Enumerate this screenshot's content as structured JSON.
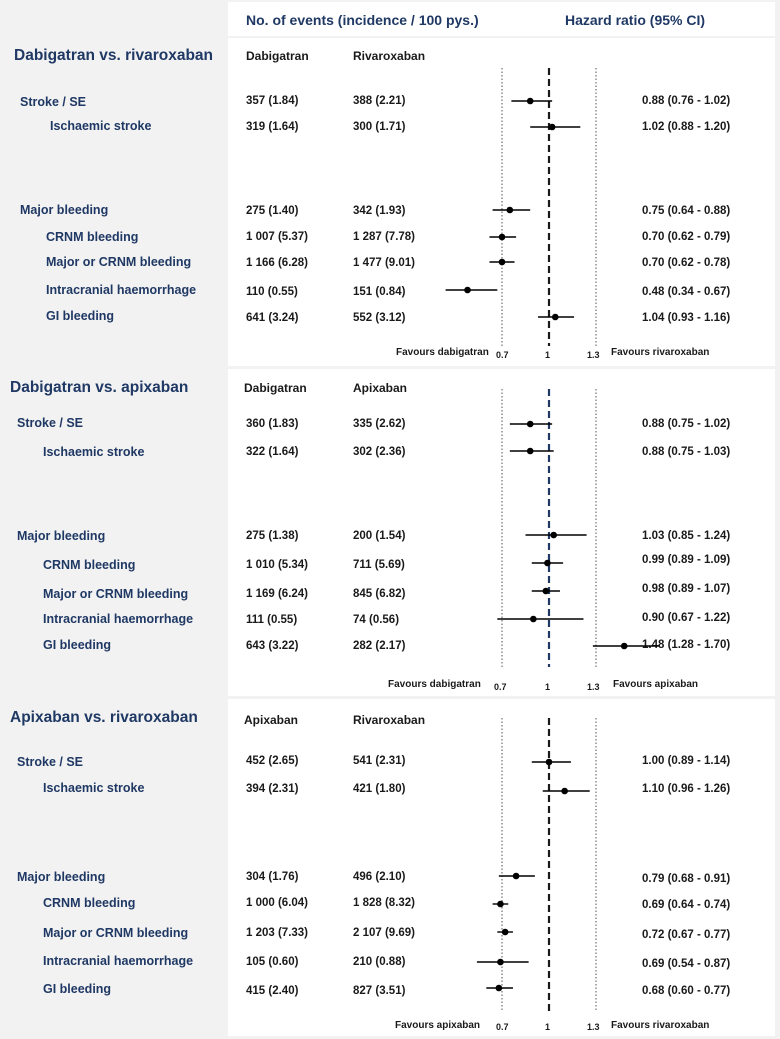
{
  "header": {
    "events_title": "No. of events (incidence / 100 pys.)",
    "hr_title": "Hazard ratio (95% CI)"
  },
  "colors": {
    "text": "#1f3864",
    "dark": "#1a1a1a",
    "ref_line_alt": "#1f3864",
    "panel_bg": "#ffffff",
    "page_bg": "#f2f2f2"
  },
  "chart_data": [
    {
      "type": "forest",
      "title": "Dabigatran vs. rivaroxaban",
      "columns": [
        "Dabigatran",
        "Rivaroxaban"
      ],
      "axis": {
        "ticks": [
          0.7,
          1,
          1.3
        ],
        "tick_labels": [
          "0.7",
          "1",
          "1.3"
        ],
        "xlim": [
          0.7,
          1.3
        ],
        "reference": 1
      },
      "favours_left": "Favours dabigatran",
      "favours_right": "Favours rivaroxaban",
      "rows": [
        {
          "label": "Stroke / SE",
          "col1": "357 (1.84)",
          "col2": "388 (2.21)",
          "hr": 0.88,
          "lo": 0.76,
          "hi": 1.02,
          "text": "0.88 (0.76 - 1.02)"
        },
        {
          "label": "Ischaemic stroke",
          "col1": "319 (1.64)",
          "col2": "300 (1.71)",
          "hr": 1.02,
          "lo": 0.88,
          "hi": 1.2,
          "text": "1.02 (0.88 - 1.20)"
        },
        {
          "label": "Major bleeding",
          "col1": "275 (1.40)",
          "col2": "342 (1.93)",
          "hr": 0.75,
          "lo": 0.64,
          "hi": 0.88,
          "text": "0.75 (0.64 - 0.88)"
        },
        {
          "label": "CRNM bleeding",
          "col1": "1 007 (5.37)",
          "col2": "1 287 (7.78)",
          "hr": 0.7,
          "lo": 0.62,
          "hi": 0.79,
          "text": "0.70 (0.62 - 0.79)"
        },
        {
          "label": "Major or CRNM bleeding",
          "col1": "1 166 (6.28)",
          "col2": "1 477 (9.01)",
          "hr": 0.7,
          "lo": 0.62,
          "hi": 0.78,
          "text": "0.70 (0.62 - 0.78)"
        },
        {
          "label": "Intracranial haemorrhage",
          "col1": "110 (0.55)",
          "col2": "151 (0.84)",
          "hr": 0.48,
          "lo": 0.34,
          "hi": 0.67,
          "text": "0.48 (0.34 - 0.67)"
        },
        {
          "label": "GI bleeding",
          "col1": "641 (3.24)",
          "col2": "552 (3.12)",
          "hr": 1.04,
          "lo": 0.93,
          "hi": 1.16,
          "text": "1.04 (0.93 - 1.16)"
        }
      ]
    },
    {
      "type": "forest",
      "title": "Dabigatran vs. apixaban",
      "columns": [
        "Dabigatran",
        "Apixaban"
      ],
      "axis": {
        "ticks": [
          0.7,
          1,
          1.3
        ],
        "tick_labels": [
          "0.7",
          "1",
          "1.3"
        ],
        "xlim": [
          0.7,
          1.3
        ],
        "reference": 1
      },
      "favours_left": "Favours dabigatran",
      "favours_right": "Favours apixaban",
      "rows": [
        {
          "label": "Stroke / SE",
          "col1": "360 (1.83)",
          "col2": "335 (2.62)",
          "hr": 0.88,
          "lo": 0.75,
          "hi": 1.02,
          "text": "0.88 (0.75 - 1.02)"
        },
        {
          "label": "Ischaemic stroke",
          "col1": "322 (1.64)",
          "col2": "302 (2.36)",
          "hr": 0.88,
          "lo": 0.75,
          "hi": 1.03,
          "text": "0.88 (0.75 - 1.03)"
        },
        {
          "label": "Major bleeding",
          "col1": "275 (1.38)",
          "col2": "200 (1.54)",
          "hr": 1.03,
          "lo": 0.85,
          "hi": 1.24,
          "text": "1.03 (0.85 - 1.24)"
        },
        {
          "label": "CRNM bleeding",
          "col1": "1 010 (5.34)",
          "col2": "711 (5.69)",
          "hr": 0.99,
          "lo": 0.89,
          "hi": 1.09,
          "text": "0.99 (0.89 - 1.09)"
        },
        {
          "label": "Major or CRNM bleeding",
          "col1": "1 169 (6.24)",
          "col2": "845 (6.82)",
          "hr": 0.98,
          "lo": 0.89,
          "hi": 1.07,
          "text": "0.98 (0.89 - 1.07)"
        },
        {
          "label": "Intracranial haemorrhage",
          "col1": "111 (0.55)",
          "col2": "74 (0.56)",
          "hr": 0.9,
          "lo": 0.67,
          "hi": 1.22,
          "text": "0.90 (0.67 - 1.22)"
        },
        {
          "label": "GI bleeding",
          "col1": "643 (3.22)",
          "col2": "282 (2.17)",
          "hr": 1.48,
          "lo": 1.28,
          "hi": 1.7,
          "text": "1.48 (1.28 - 1.70)"
        }
      ]
    },
    {
      "type": "forest",
      "title": "Apixaban vs. rivaroxaban",
      "columns": [
        "Apixaban",
        "Rivaroxaban"
      ],
      "axis": {
        "ticks": [
          0.7,
          1,
          1.3
        ],
        "tick_labels": [
          "0.7",
          "1",
          "1.3"
        ],
        "xlim": [
          0.7,
          1.3
        ],
        "reference": 1
      },
      "favours_left": "Favours apixaban",
      "favours_right": "Favours rivaroxaban",
      "rows": [
        {
          "label": "Stroke / SE",
          "col1": "452 (2.65)",
          "col2": "541 (2.31)",
          "hr": 1.0,
          "lo": 0.89,
          "hi": 1.14,
          "text": "1.00 (0.89 - 1.14)"
        },
        {
          "label": "Ischaemic stroke",
          "col1": "394 (2.31)",
          "col2": "421 (1.80)",
          "hr": 1.1,
          "lo": 0.96,
          "hi": 1.26,
          "text": "1.10 (0.96 - 1.26)"
        },
        {
          "label": "Major bleeding",
          "col1": "304 (1.76)",
          "col2": "496 (2.10)",
          "hr": 0.79,
          "lo": 0.68,
          "hi": 0.91,
          "text": "0.79 (0.68 - 0.91)"
        },
        {
          "label": "CRNM bleeding",
          "col1": "1 000 (6.04)",
          "col2": "1 828 (8.32)",
          "hr": 0.69,
          "lo": 0.64,
          "hi": 0.74,
          "text": "0.69 (0.64 - 0.74)"
        },
        {
          "label": "Major or CRNM bleeding",
          "col1": "1 203 (7.33)",
          "col2": "2 107 (9.69)",
          "hr": 0.72,
          "lo": 0.67,
          "hi": 0.77,
          "text": "0.72 (0.67 - 0.77)"
        },
        {
          "label": "Intracranial haemorrhage",
          "col1": "105 (0.60)",
          "col2": "210 (0.88)",
          "hr": 0.69,
          "lo": 0.54,
          "hi": 0.87,
          "text": "0.69 (0.54 - 0.87)"
        },
        {
          "label": "GI bleeding",
          "col1": "415 (2.40)",
          "col2": "827 (3.51)",
          "hr": 0.68,
          "lo": 0.6,
          "hi": 0.77,
          "text": "0.68 (0.60 - 0.77)"
        }
      ]
    }
  ]
}
